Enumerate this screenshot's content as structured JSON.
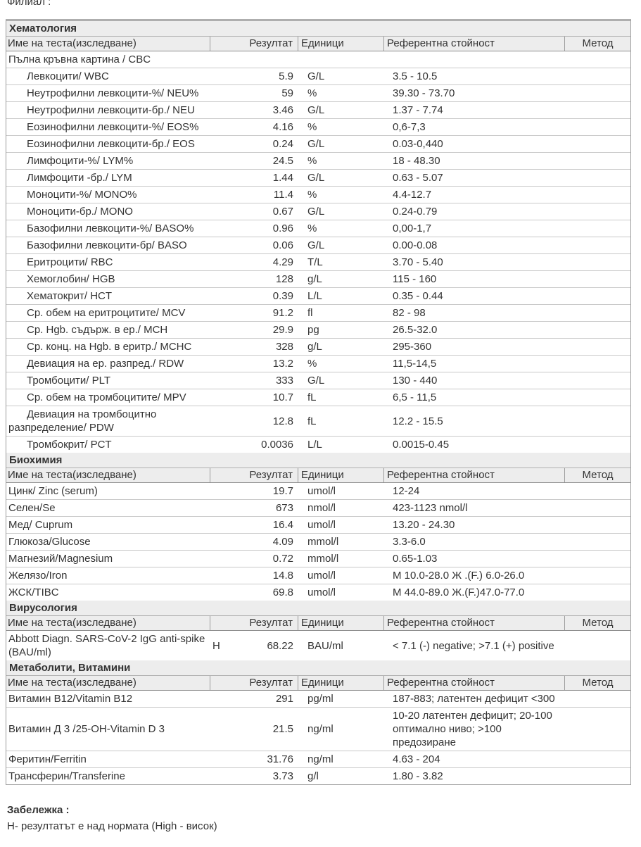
{
  "page": {
    "top_label": "Филиал :",
    "note_title": "Забележка :",
    "note_line": "Н- резултатът е над нормата (High - висок)"
  },
  "colors": {
    "section_header_bg": "#ededed",
    "table_border": "#9b9b9b",
    "row_border": "#c9c9c9"
  },
  "columns": {
    "name": "Име на теста(изследване)",
    "result": "Резултат",
    "units": "Единици",
    "reference": "Референтна стойност",
    "method": "Метод"
  },
  "sections": [
    {
      "title": "Хематология",
      "rows": [
        {
          "type": "group",
          "name": "Пълна кръвна картина / CBC"
        },
        {
          "type": "test",
          "indent": true,
          "name": "Левкоцити/ WBC",
          "result": "5.9",
          "units": "G/L",
          "reference": "3.5 - 10.5",
          "method": ""
        },
        {
          "type": "test",
          "indent": true,
          "name": "Неутрофилни левкоцити-%/ NEU%",
          "result": "59",
          "units": "%",
          "reference": "39.30 - 73.70",
          "method": ""
        },
        {
          "type": "test",
          "indent": true,
          "name": "Неутрофилни левкоцити-бр./ NEU",
          "result": "3.46",
          "units": "G/L",
          "reference": "1.37 - 7.74",
          "method": ""
        },
        {
          "type": "test",
          "indent": true,
          "name": "Еозинофилни левкоцити-%/ EOS%",
          "result": "4.16",
          "units": "%",
          "reference": "0,6-7,3",
          "method": ""
        },
        {
          "type": "test",
          "indent": true,
          "name": "Еозинофилни левкоцити-бр./ EOS",
          "result": "0.24",
          "units": "G/L",
          "reference": "0.03-0,440",
          "method": ""
        },
        {
          "type": "test",
          "indent": true,
          "name": "Лимфоцити-%/ LYM%",
          "result": "24.5",
          "units": "%",
          "reference": "18 - 48.30",
          "method": ""
        },
        {
          "type": "test",
          "indent": true,
          "name": "Лимфоцити -бр./ LYM",
          "result": "1.44",
          "units": "G/L",
          "reference": "0.63 - 5.07",
          "method": ""
        },
        {
          "type": "test",
          "indent": true,
          "name": "Моноцити-%/ MONO%",
          "result": "11.4",
          "units": "%",
          "reference": "4.4-12.7",
          "method": ""
        },
        {
          "type": "test",
          "indent": true,
          "name": "Моноцити-бр./ MONO",
          "result": "0.67",
          "units": "G/L",
          "reference": "0.24-0.79",
          "method": ""
        },
        {
          "type": "test",
          "indent": true,
          "name": "Базофилни левкоцити-%/ BASO%",
          "result": "0.96",
          "units": "%",
          "reference": "0,00-1,7",
          "method": ""
        },
        {
          "type": "test",
          "indent": true,
          "name": "Базофилни левкоцити-бр/ BASO",
          "result": "0.06",
          "units": "G/L",
          "reference": "0.00-0.08",
          "method": ""
        },
        {
          "type": "test",
          "indent": true,
          "name": "Еритроцити/ RBC",
          "result": "4.29",
          "units": "T/L",
          "reference": "3.70 - 5.40",
          "method": ""
        },
        {
          "type": "test",
          "indent": true,
          "name": "Хемоглобин/ HGB",
          "result": "128",
          "units": "g/L",
          "reference": "115 - 160",
          "method": ""
        },
        {
          "type": "test",
          "indent": true,
          "name": "Хематокрит/ HCT",
          "result": "0.39",
          "units": "L/L",
          "reference": "0.35 - 0.44",
          "method": ""
        },
        {
          "type": "test",
          "indent": true,
          "name": "Ср. обем на еритроцитите/ MCV",
          "result": "91.2",
          "units": "fl",
          "reference": "82 - 98",
          "method": ""
        },
        {
          "type": "test",
          "indent": true,
          "name": "Ср. Hgb. съдърж. в ер./ MCH",
          "result": "29.9",
          "units": "pg",
          "reference": "26.5-32.0",
          "method": ""
        },
        {
          "type": "test",
          "indent": true,
          "name": "Ср. конц. на Hgb. в еритр./ MCHC",
          "result": "328",
          "units": "g/L",
          "reference": "295-360",
          "method": ""
        },
        {
          "type": "test",
          "indent": true,
          "name": "Девиация на ер. разпред./ RDW",
          "result": "13.2",
          "units": "%",
          "reference": "11,5-14,5",
          "method": ""
        },
        {
          "type": "test",
          "indent": true,
          "name": "Тромбоцити/ PLT",
          "result": "333",
          "units": "G/L",
          "reference": "130 - 440",
          "method": ""
        },
        {
          "type": "test",
          "indent": true,
          "name": "Ср. обем на тромбоцитите/ MPV",
          "result": "10.7",
          "units": "fL",
          "reference": "6,5 - 11,5",
          "method": ""
        },
        {
          "type": "test",
          "indent": true,
          "name": "Девиация на тромбоцитно разпределение/ PDW",
          "result": "12.8",
          "units": "fL",
          "reference": "12.2 - 15.5",
          "method": ""
        },
        {
          "type": "test",
          "indent": true,
          "name": "Тромбокрит/ PCT",
          "result": "0.0036",
          "units": "L/L",
          "reference": "0.0015-0.45",
          "method": ""
        }
      ]
    },
    {
      "title": "Биохимия",
      "rows": [
        {
          "type": "test",
          "name": "Цинк/ Zinc (serum)",
          "result": "19.7",
          "units": "umol/l",
          "reference": "12-24",
          "method": ""
        },
        {
          "type": "test",
          "name": "Селен/Se",
          "result": "673",
          "units": "nmol/l",
          "reference": "423-1123 nmol/l",
          "method": ""
        },
        {
          "type": "test",
          "name": "Мед/ Cuprum",
          "result": "16.4",
          "units": "umol/l",
          "reference": "13.20 - 24.30",
          "method": ""
        },
        {
          "type": "test",
          "name": "Глюкоза/Glucose",
          "result": "4.09",
          "units": "mmol/l",
          "reference": "3.3-6.0",
          "method": ""
        },
        {
          "type": "test",
          "name": "Магнезий/Magnesium",
          "result": "0.72",
          "units": "mmol/l",
          "reference": "0.65-1.03",
          "method": ""
        },
        {
          "type": "test",
          "name": "Желязо/Iron",
          "result": "14.8",
          "units": "umol/l",
          "reference": "М 10.0-28.0 Ж .(F.) 6.0-26.0",
          "method": ""
        },
        {
          "type": "test",
          "name": "ЖСК/TIBC",
          "result": "69.8",
          "units": "umol/l",
          "reference": "М 44.0-89.0 Ж.(F.)47.0-77.0",
          "method": ""
        }
      ]
    },
    {
      "title": "Вирусология",
      "rows": [
        {
          "type": "test",
          "name": "Abbott Diagn. SARS-CoV-2 IgG anti-spike (BAU/ml)",
          "flag": "Н",
          "result": "68.22",
          "units": "BAU/ml",
          "reference": "< 7.1 (-) negative; >7.1 (+) positive",
          "method": ""
        }
      ]
    },
    {
      "title": "Метаболити, Витамини",
      "rows": [
        {
          "type": "test",
          "name": "Витамин В12/Vitamin B12",
          "result": "291",
          "units": "pg/ml",
          "reference": "187-883; латентен дефицит <300",
          "method": ""
        },
        {
          "type": "test",
          "name": "Витамин Д 3 /25-OH-Vitamin D 3",
          "result": "21.5",
          "units": "ng/ml",
          "reference": "10-20 латентен дефицит; 20-100 оптимално ниво; >100 предозиране",
          "method": ""
        },
        {
          "type": "test",
          "name": "Феритин/Ferritin",
          "result": "31.76",
          "units": "ng/ml",
          "reference": "4.63 - 204",
          "method": ""
        },
        {
          "type": "test",
          "name": "Трансферин/Transferine",
          "result": "3.73",
          "units": "g/l",
          "reference": "1.80 - 3.82",
          "method": ""
        }
      ]
    }
  ]
}
